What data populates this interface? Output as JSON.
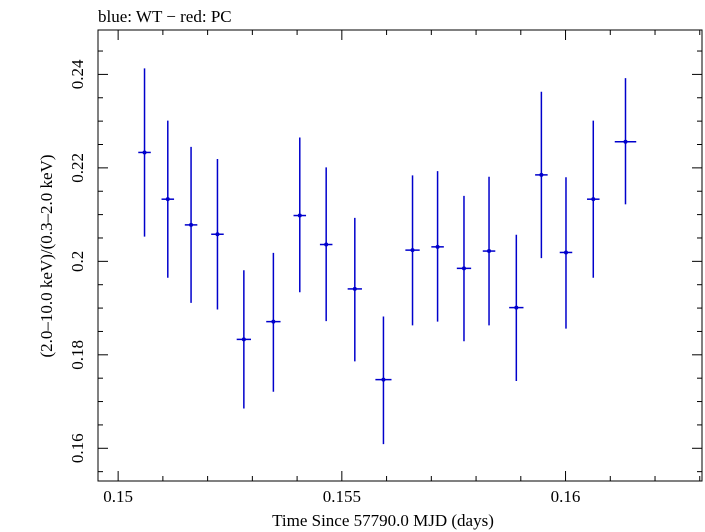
{
  "chart_data": {
    "type": "scatter",
    "title": "blue: WT − red: PC",
    "xlabel": "Time Since 57790.0 MJD (days)",
    "ylabel": "(2.0–10.0 keV)/(0.3–2.0 keV)",
    "xlim": [
      0.14955,
      0.16305
    ],
    "ylim": [
      0.153,
      0.2495
    ],
    "x_ticks": [
      0.15,
      0.155,
      0.16
    ],
    "x_tick_labels": [
      "0.15",
      "0.155",
      "0.16"
    ],
    "y_ticks": [
      0.16,
      0.18,
      0.2,
      0.22,
      0.24
    ],
    "y_tick_labels": [
      "0.16",
      "0.18",
      "0.2",
      "0.22",
      "0.24"
    ],
    "grid": false,
    "series": [
      {
        "color": "#0000cc",
        "points": [
          {
            "x": 0.15059,
            "y": 0.2233,
            "x_err": 0.00014,
            "y_low": 0.2053,
            "y_high": 0.2413
          },
          {
            "x": 0.15111,
            "y": 0.2133,
            "x_err": 0.00014,
            "y_low": 0.1965,
            "y_high": 0.2301
          },
          {
            "x": 0.15163,
            "y": 0.2078,
            "x_err": 0.00014,
            "y_low": 0.1911,
            "y_high": 0.2245
          },
          {
            "x": 0.15222,
            "y": 0.2058,
            "x_err": 0.00014,
            "y_low": 0.1897,
            "y_high": 0.2219
          },
          {
            "x": 0.15281,
            "y": 0.1833,
            "x_err": 0.00016,
            "y_low": 0.1685,
            "y_high": 0.1981
          },
          {
            "x": 0.15347,
            "y": 0.1871,
            "x_err": 0.00016,
            "y_low": 0.1721,
            "y_high": 0.2018
          },
          {
            "x": 0.15406,
            "y": 0.2098,
            "x_err": 0.00014,
            "y_low": 0.1934,
            "y_high": 0.2265
          },
          {
            "x": 0.15465,
            "y": 0.2036,
            "x_err": 0.00014,
            "y_low": 0.1872,
            "y_high": 0.2201
          },
          {
            "x": 0.15529,
            "y": 0.1941,
            "x_err": 0.00016,
            "y_low": 0.1786,
            "y_high": 0.2093
          },
          {
            "x": 0.15593,
            "y": 0.1747,
            "x_err": 0.00018,
            "y_low": 0.1609,
            "y_high": 0.1882
          },
          {
            "x": 0.15658,
            "y": 0.2024,
            "x_err": 0.00016,
            "y_low": 0.1863,
            "y_high": 0.2184
          },
          {
            "x": 0.15714,
            "y": 0.2031,
            "x_err": 0.00014,
            "y_low": 0.1871,
            "y_high": 0.2193
          },
          {
            "x": 0.15773,
            "y": 0.1985,
            "x_err": 0.00016,
            "y_low": 0.1829,
            "y_high": 0.214
          },
          {
            "x": 0.15829,
            "y": 0.2022,
            "x_err": 0.00014,
            "y_low": 0.1863,
            "y_high": 0.2181
          },
          {
            "x": 0.1589,
            "y": 0.1901,
            "x_err": 0.00016,
            "y_low": 0.1744,
            "y_high": 0.2057
          },
          {
            "x": 0.15946,
            "y": 0.2185,
            "x_err": 0.00014,
            "y_low": 0.2007,
            "y_high": 0.2363
          },
          {
            "x": 0.16001,
            "y": 0.2019,
            "x_err": 0.00014,
            "y_low": 0.1856,
            "y_high": 0.218
          },
          {
            "x": 0.16062,
            "y": 0.2133,
            "x_err": 0.00014,
            "y_low": 0.1965,
            "y_high": 0.2301
          },
          {
            "x": 0.16134,
            "y": 0.2256,
            "x_err": 0.00024,
            "y_low": 0.2122,
            "y_high": 0.2392
          }
        ]
      }
    ]
  }
}
